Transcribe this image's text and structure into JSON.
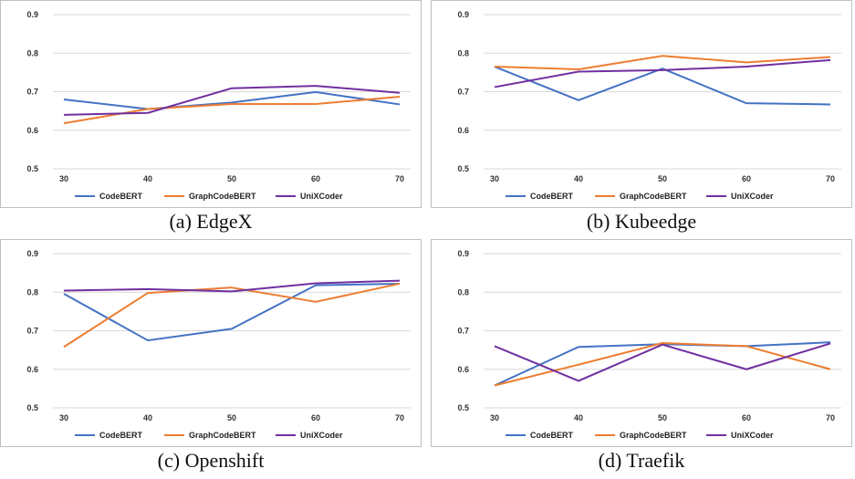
{
  "chart_data": [
    {
      "type": "line",
      "caption": "(a) EdgeX",
      "x": [
        30,
        40,
        50,
        60,
        70
      ],
      "ylim": [
        0.5,
        0.9
      ],
      "yticks": [
        "0.5",
        "0.6",
        "0.7",
        "0.8",
        "0.9"
      ],
      "grid": true,
      "legend": "bottom",
      "series": [
        {
          "name": "CodeBERT",
          "color": "#4472C4",
          "values": [
            0.68,
            0.655,
            0.672,
            0.699,
            0.667
          ]
        },
        {
          "name": "GraphCodeBERT",
          "color": "#ED7D31",
          "values": [
            0.618,
            0.655,
            0.668,
            0.668,
            0.687
          ]
        },
        {
          "name": "UniXCoder",
          "color": "#7030A0",
          "values": [
            0.64,
            0.645,
            0.709,
            0.715,
            0.697
          ]
        }
      ]
    },
    {
      "type": "line",
      "caption": "(b) Kubeedge",
      "x": [
        30,
        40,
        50,
        60,
        70
      ],
      "ylim": [
        0.5,
        0.9
      ],
      "yticks": [
        "0.5",
        "0.6",
        "0.7",
        "0.8",
        "0.9"
      ],
      "grid": true,
      "legend": "bottom",
      "series": [
        {
          "name": "CodeBERT",
          "color": "#4472C4",
          "values": [
            0.765,
            0.678,
            0.76,
            0.67,
            0.667
          ]
        },
        {
          "name": "GraphCodeBERT",
          "color": "#ED7D31",
          "values": [
            0.765,
            0.758,
            0.793,
            0.776,
            0.79
          ]
        },
        {
          "name": "UniXCoder",
          "color": "#7030A0",
          "values": [
            0.712,
            0.752,
            0.756,
            0.765,
            0.782
          ]
        }
      ]
    },
    {
      "type": "line",
      "caption": "(c) Openshift",
      "x": [
        30,
        40,
        50,
        60,
        70
      ],
      "ylim": [
        0.5,
        0.9
      ],
      "yticks": [
        "0.5",
        "0.6",
        "0.7",
        "0.8",
        "0.9"
      ],
      "grid": true,
      "legend": "bottom",
      "series": [
        {
          "name": "CodeBERT",
          "color": "#4472C4",
          "values": [
            0.796,
            0.675,
            0.705,
            0.818,
            0.822
          ]
        },
        {
          "name": "GraphCodeBERT",
          "color": "#ED7D31",
          "values": [
            0.658,
            0.798,
            0.812,
            0.775,
            0.822
          ]
        },
        {
          "name": "UniXCoder",
          "color": "#7030A0",
          "values": [
            0.804,
            0.808,
            0.802,
            0.823,
            0.83
          ]
        }
      ]
    },
    {
      "type": "line",
      "caption": "(d) Traefik",
      "x": [
        30,
        40,
        50,
        60,
        70
      ],
      "ylim": [
        0.5,
        0.9
      ],
      "yticks": [
        "0.5",
        "0.6",
        "0.7",
        "0.8",
        "0.9"
      ],
      "grid": true,
      "legend": "bottom",
      "series": [
        {
          "name": "CodeBERT",
          "color": "#4472C4",
          "values": [
            0.558,
            0.658,
            0.665,
            0.66,
            0.67
          ]
        },
        {
          "name": "GraphCodeBERT",
          "color": "#ED7D31",
          "values": [
            0.558,
            0.612,
            0.668,
            0.66,
            0.6
          ]
        },
        {
          "name": "UniXCoder",
          "color": "#7030A0",
          "values": [
            0.66,
            0.57,
            0.664,
            0.6,
            0.667
          ]
        }
      ]
    }
  ]
}
